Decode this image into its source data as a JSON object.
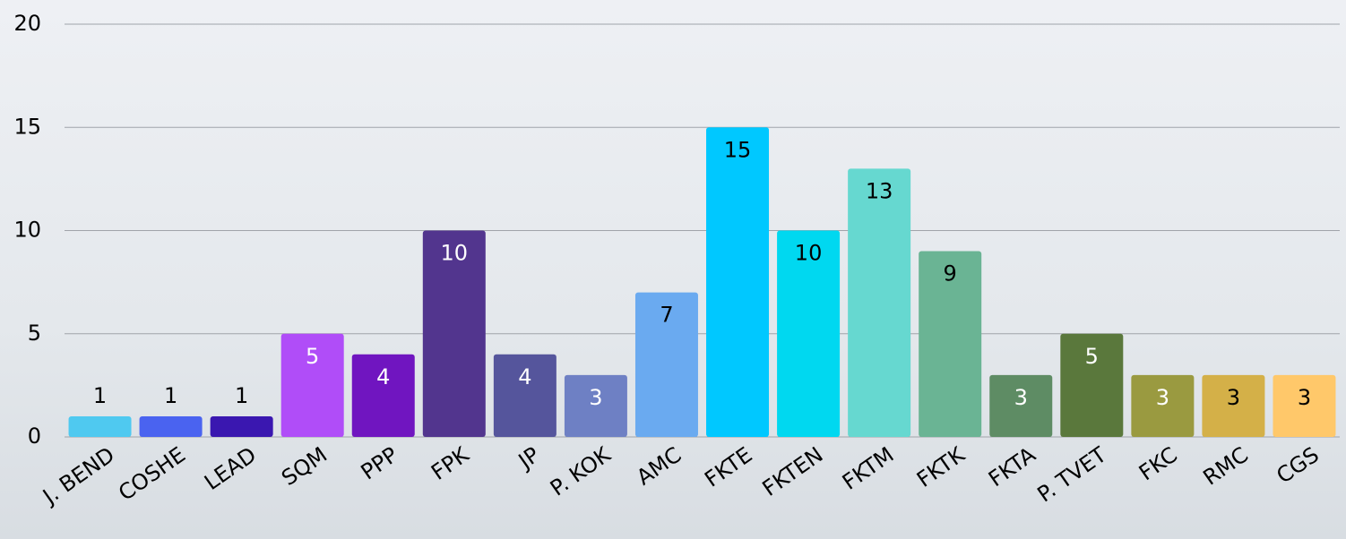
{
  "chart_data": {
    "type": "bar",
    "categories": [
      "J. BEND",
      "COSHE",
      "LEAD",
      "SQM",
      "PPP",
      "FPK",
      "JP",
      "P. KOK",
      "AMC",
      "FKTE",
      "FKTEN",
      "FKTM",
      "FKTK",
      "FKTA",
      "P. TVET",
      "FKC",
      "RMC",
      "CGS"
    ],
    "values": [
      1,
      1,
      1,
      5,
      4,
      10,
      4,
      3,
      7,
      15,
      10,
      13,
      9,
      3,
      5,
      3,
      3,
      3
    ],
    "colors": [
      "#4fc9f0",
      "#4a63f0",
      "#3a17b0",
      "#b04df8",
      "#7015c0",
      "#52358e",
      "#55559c",
      "#6e80c4",
      "#6aaaf0",
      "#00c8ff",
      "#00d8f0",
      "#66d8d0",
      "#6ab494",
      "#5e8c64",
      "#5a783c",
      "#9a9a40",
      "#d4b048",
      "#ffc86a"
    ],
    "value_label_colors": [
      "#000000",
      "#000000",
      "#000000",
      "#ffffff",
      "#ffffff",
      "#ffffff",
      "#ffffff",
      "#ffffff",
      "#000000",
      "#000000",
      "#000000",
      "#000000",
      "#000000",
      "#ffffff",
      "#ffffff",
      "#ffffff",
      "#000000",
      "#000000"
    ],
    "ylim": [
      0,
      20
    ],
    "yticks": [
      0,
      5,
      10,
      15,
      20
    ],
    "grid": true
  }
}
